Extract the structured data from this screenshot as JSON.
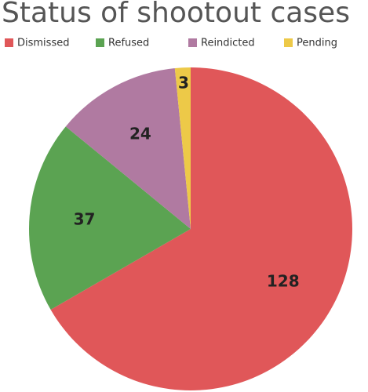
{
  "chart_data": {
    "type": "pie",
    "title": "Status of shootout cases",
    "categories": [
      "Dismissed",
      "Refused",
      "Reindicted",
      "Pending"
    ],
    "values": [
      128,
      37,
      24,
      3
    ],
    "colors": [
      "#e05759",
      "#5ba352",
      "#b07aa1",
      "#edc948"
    ],
    "legend": "top"
  }
}
